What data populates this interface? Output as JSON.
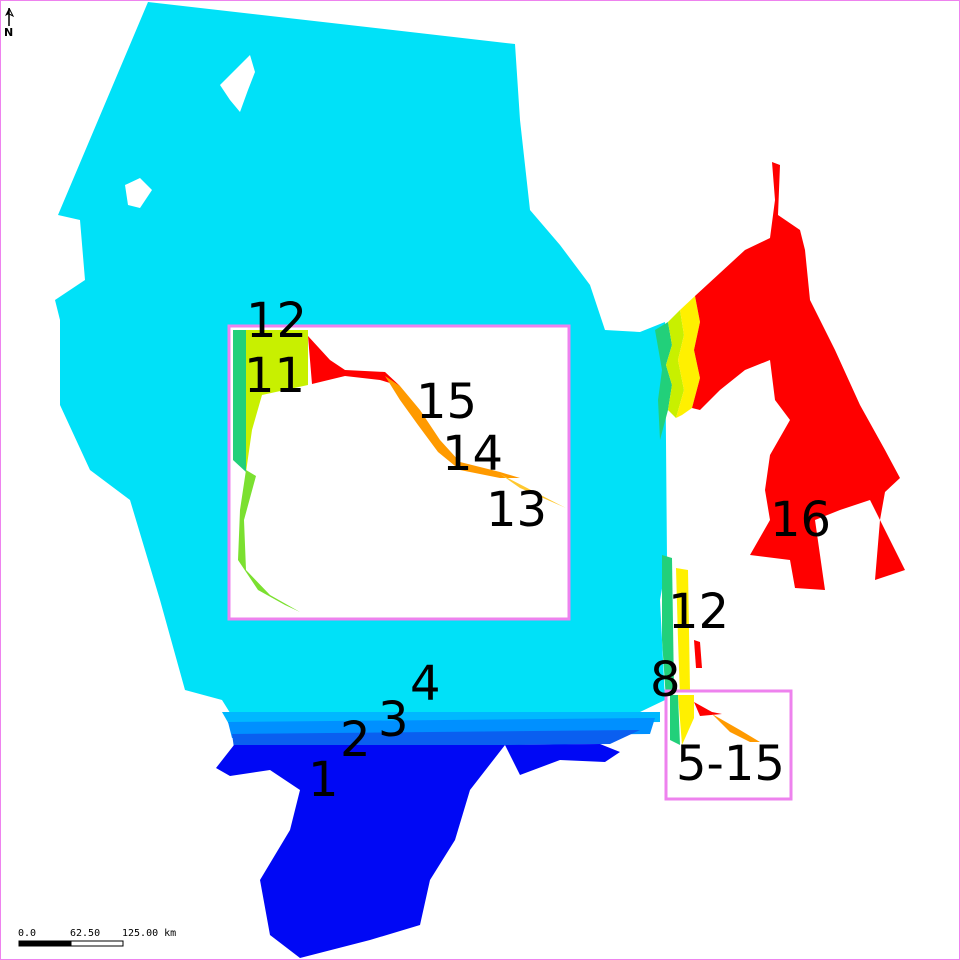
{
  "map": {
    "colors": {
      "zone_1": "#0008f5",
      "zone_2": "#0a5ff0",
      "zone_3": "#0090ff",
      "zone_4": "#00b8ff",
      "sea": "#00e1f8",
      "green": "#22d07a",
      "yellow_green": "#c8f000",
      "yellow": "#fff000",
      "orange": "#ff9a00",
      "red": "#ff0000",
      "inset_border": "#ee82ee"
    },
    "north_arrow": {
      "label": "N",
      "icon": "north-arrow-icon"
    },
    "scale_bar": {
      "labels": [
        "0.0",
        "62.50",
        "125.00 km"
      ]
    },
    "zone_labels": [
      {
        "id": "1",
        "text": "1"
      },
      {
        "id": "2",
        "text": "2"
      },
      {
        "id": "3",
        "text": "3"
      },
      {
        "id": "4",
        "text": "4"
      },
      {
        "id": "8",
        "text": "8"
      },
      {
        "id": "12a",
        "text": "12"
      },
      {
        "id": "12b",
        "text": "12"
      },
      {
        "id": "11",
        "text": "11"
      },
      {
        "id": "15",
        "text": "15"
      },
      {
        "id": "14",
        "text": "14"
      },
      {
        "id": "13",
        "text": "13"
      },
      {
        "id": "16",
        "text": "16"
      },
      {
        "id": "5-15",
        "text": "5-15"
      }
    ]
  }
}
